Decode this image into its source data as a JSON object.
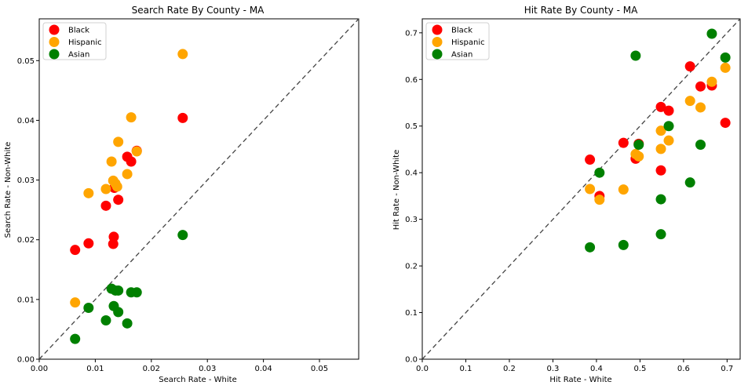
{
  "chart_data": [
    {
      "type": "scatter",
      "title": "Search Rate By County - MA",
      "xlabel": "Search Rate - White",
      "ylabel": "Search Rate - Non-White",
      "xlim": [
        0,
        0.057
      ],
      "ylim": [
        0,
        0.057
      ],
      "xticks": [
        "0.00",
        "0.01",
        "0.02",
        "0.03",
        "0.04",
        "0.05"
      ],
      "yticks": [
        "0.00",
        "0.01",
        "0.02",
        "0.03",
        "0.04",
        "0.05"
      ],
      "tick_values": [
        0,
        0.01,
        0.02,
        0.03,
        0.04,
        0.05
      ],
      "diagonal": true,
      "grid": false,
      "legend": "top-left",
      "series": [
        {
          "name": "Black",
          "color": "#ff0000",
          "points": [
            [
              0.0064,
              0.0183
            ],
            [
              0.0088,
              0.0194
            ],
            [
              0.0119,
              0.0257
            ],
            [
              0.0132,
              0.0193
            ],
            [
              0.0133,
              0.0205
            ],
            [
              0.0134,
              0.0287
            ],
            [
              0.0141,
              0.0267
            ],
            [
              0.0157,
              0.0339
            ],
            [
              0.0164,
              0.0331
            ],
            [
              0.0174,
              0.0349
            ],
            [
              0.0256,
              0.0404
            ]
          ]
        },
        {
          "name": "Hispanic",
          "color": "#ffa500",
          "points": [
            [
              0.0064,
              0.0095
            ],
            [
              0.0088,
              0.0278
            ],
            [
              0.0119,
              0.0285
            ],
            [
              0.0129,
              0.0331
            ],
            [
              0.0132,
              0.0299
            ],
            [
              0.0136,
              0.0294
            ],
            [
              0.0139,
              0.0289
            ],
            [
              0.0141,
              0.0364
            ],
            [
              0.0157,
              0.031
            ],
            [
              0.0164,
              0.0405
            ],
            [
              0.0174,
              0.0348
            ],
            [
              0.0256,
              0.0511
            ]
          ]
        },
        {
          "name": "Asian",
          "color": "#008000",
          "points": [
            [
              0.0064,
              0.0034
            ],
            [
              0.0088,
              0.0086
            ],
            [
              0.0119,
              0.0065
            ],
            [
              0.0129,
              0.0118
            ],
            [
              0.0133,
              0.0089
            ],
            [
              0.0136,
              0.0115
            ],
            [
              0.0141,
              0.0115
            ],
            [
              0.0141,
              0.0079
            ],
            [
              0.0157,
              0.006
            ],
            [
              0.0164,
              0.0112
            ],
            [
              0.0174,
              0.0112
            ],
            [
              0.0256,
              0.0208
            ]
          ]
        }
      ]
    },
    {
      "type": "scatter",
      "title": "Hit Rate By County - MA",
      "xlabel": "Hit Rate - White",
      "ylabel": "Hit Rate - Non-White",
      "xlim": [
        0,
        0.73
      ],
      "ylim": [
        0,
        0.73
      ],
      "xticks": [
        "0.0",
        "0.1",
        "0.2",
        "0.3",
        "0.4",
        "0.5",
        "0.6",
        "0.7"
      ],
      "yticks": [
        "0.0",
        "0.1",
        "0.2",
        "0.3",
        "0.4",
        "0.5",
        "0.6",
        "0.7"
      ],
      "tick_values": [
        0,
        0.1,
        0.2,
        0.3,
        0.4,
        0.5,
        0.6,
        0.7
      ],
      "diagonal": true,
      "grid": false,
      "legend": "top-left",
      "series": [
        {
          "name": "Black",
          "color": "#ff0000",
          "points": [
            [
              0.385,
              0.428
            ],
            [
              0.407,
              0.35
            ],
            [
              0.462,
              0.464
            ],
            [
              0.49,
              0.43
            ],
            [
              0.497,
              0.462
            ],
            [
              0.548,
              0.541
            ],
            [
              0.548,
              0.405
            ],
            [
              0.566,
              0.533
            ],
            [
              0.615,
              0.628
            ],
            [
              0.639,
              0.585
            ],
            [
              0.665,
              0.587
            ],
            [
              0.696,
              0.507
            ]
          ]
        },
        {
          "name": "Hispanic",
          "color": "#ffa500",
          "points": [
            [
              0.385,
              0.365
            ],
            [
              0.407,
              0.342
            ],
            [
              0.462,
              0.364
            ],
            [
              0.49,
              0.44
            ],
            [
              0.497,
              0.435
            ],
            [
              0.548,
              0.49
            ],
            [
              0.548,
              0.451
            ],
            [
              0.566,
              0.469
            ],
            [
              0.615,
              0.554
            ],
            [
              0.639,
              0.54
            ],
            [
              0.665,
              0.595
            ],
            [
              0.696,
              0.625
            ]
          ]
        },
        {
          "name": "Asian",
          "color": "#008000",
          "points": [
            [
              0.385,
              0.24
            ],
            [
              0.407,
              0.4
            ],
            [
              0.462,
              0.245
            ],
            [
              0.49,
              0.651
            ],
            [
              0.497,
              0.46
            ],
            [
              0.548,
              0.343
            ],
            [
              0.548,
              0.268
            ],
            [
              0.566,
              0.5
            ],
            [
              0.615,
              0.379
            ],
            [
              0.639,
              0.46
            ],
            [
              0.665,
              0.698
            ],
            [
              0.696,
              0.647
            ]
          ]
        }
      ]
    }
  ]
}
